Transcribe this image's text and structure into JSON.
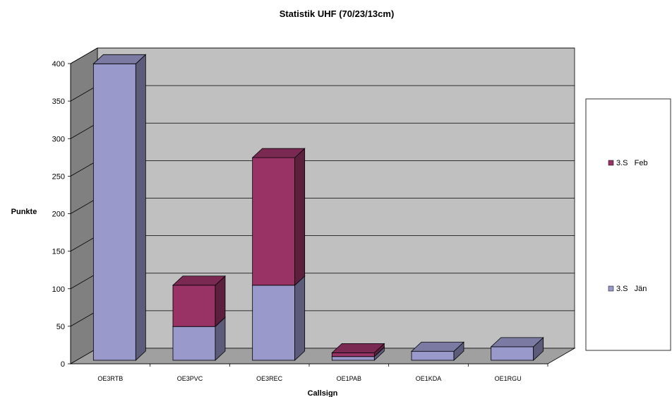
{
  "chart_data": {
    "type": "bar",
    "stacked": true,
    "three_d": true,
    "title": "Statistik UHF (70/23/13cm)",
    "xlabel": "Callsign",
    "ylabel": "Punkte",
    "ylim": [
      0,
      400
    ],
    "yticks": [
      0,
      50,
      100,
      150,
      200,
      250,
      300,
      350,
      400
    ],
    "grid": true,
    "legend_position": "right",
    "categories": [
      "OE3RTB",
      "OE3PVC",
      "OE3REC",
      "OE1PAB",
      "OE1KDA",
      "OE1RGU"
    ],
    "series": [
      {
        "name": "3.S   Jän",
        "values": [
          395,
          45,
          100,
          5,
          12,
          18
        ],
        "color": "#9999cc"
      },
      {
        "name": "3.S   Feb",
        "values": [
          0,
          55,
          170,
          5,
          0,
          0
        ],
        "color": "#993366"
      }
    ],
    "colors": {
      "wall": "#c0c0c0",
      "floor": "#a0a0a0",
      "side_wall": "#808080",
      "gridline": "#000000"
    }
  }
}
